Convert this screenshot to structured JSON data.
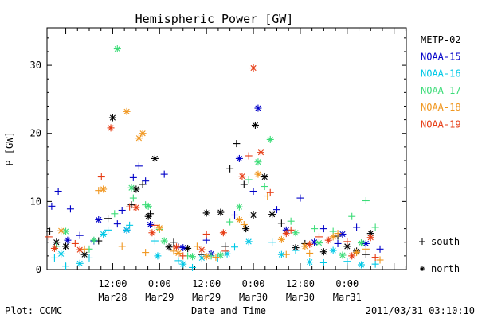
{
  "chart_data": {
    "type": "scatter",
    "title": "Hemispheric Power [GW]",
    "ylabel": "P [GW]",
    "xlabel": "Date and Time",
    "ylim": [
      0,
      35.5
    ],
    "xlim": [
      -0.2,
      3.63
    ],
    "yticks": [
      0,
      10,
      20,
      30
    ],
    "xticks": [
      {
        "x": 0.5,
        "top": "12:00",
        "bottom": "Mar28"
      },
      {
        "x": 1.0,
        "top": "0:00",
        "bottom": "Mar29"
      },
      {
        "x": 1.5,
        "top": "12:00",
        "bottom": "Mar29"
      },
      {
        "x": 2.0,
        "top": "0:00",
        "bottom": "Mar30"
      },
      {
        "x": 2.5,
        "top": "12:00",
        "bottom": "Mar30"
      },
      {
        "x": 3.0,
        "top": "0:00",
        "bottom": "Mar31"
      }
    ],
    "marker_legend": [
      {
        "symbol": "+",
        "label": "south"
      },
      {
        "symbol": "*",
        "label": "north"
      }
    ],
    "series": [
      {
        "name": "METP-02",
        "color": "#000000",
        "south": [
          [
            -0.17,
            5.6
          ],
          [
            0.35,
            4.2
          ],
          [
            0.45,
            7.5
          ],
          [
            0.7,
            9.5
          ],
          [
            0.82,
            12.5
          ],
          [
            0.9,
            8.2
          ],
          [
            1.15,
            4.0
          ],
          [
            1.45,
            2.2
          ],
          [
            1.7,
            3.4
          ],
          [
            1.75,
            14.8
          ],
          [
            1.82,
            18.5
          ],
          [
            1.9,
            12.5
          ],
          [
            2.3,
            6.8
          ],
          [
            2.55,
            3.8
          ],
          [
            2.9,
            4.9
          ],
          [
            3.2,
            2.2
          ]
        ],
        "north": [
          [
            -0.1,
            4.0
          ],
          [
            0.0,
            3.4
          ],
          [
            0.2,
            2.2
          ],
          [
            0.5,
            22.3
          ],
          [
            0.75,
            11.8
          ],
          [
            0.88,
            7.8
          ],
          [
            0.95,
            16.3
          ],
          [
            1.1,
            3.3
          ],
          [
            1.3,
            3.1
          ],
          [
            1.5,
            8.3
          ],
          [
            1.65,
            8.4
          ],
          [
            1.92,
            6.0
          ],
          [
            2.0,
            8.0
          ],
          [
            2.02,
            21.2
          ],
          [
            2.12,
            13.6
          ],
          [
            2.2,
            8.1
          ],
          [
            2.45,
            3.2
          ],
          [
            2.75,
            2.6
          ],
          [
            3.0,
            3.4
          ],
          [
            3.25,
            5.3
          ],
          [
            3.1,
            2.7
          ]
        ]
      },
      {
        "name": "NOAA-15",
        "color": "#0000c8",
        "south": [
          [
            -0.15,
            9.3
          ],
          [
            -0.08,
            11.5
          ],
          [
            0.05,
            8.9
          ],
          [
            0.15,
            5.0
          ],
          [
            0.3,
            4.2
          ],
          [
            0.55,
            6.7
          ],
          [
            0.6,
            8.7
          ],
          [
            0.72,
            13.5
          ],
          [
            0.78,
            15.2
          ],
          [
            0.85,
            13.0
          ],
          [
            1.05,
            14.0
          ],
          [
            1.2,
            3.3
          ],
          [
            1.5,
            4.3
          ],
          [
            1.8,
            8.0
          ],
          [
            2.0,
            11.5
          ],
          [
            2.25,
            8.8
          ],
          [
            2.5,
            10.5
          ],
          [
            2.75,
            6.0
          ],
          [
            2.9,
            3.8
          ],
          [
            3.1,
            6.2
          ],
          [
            3.35,
            3.0
          ]
        ],
        "north": [
          [
            0.02,
            4.3
          ],
          [
            0.35,
            7.3
          ],
          [
            0.65,
            5.8
          ],
          [
            0.9,
            6.6
          ],
          [
            1.25,
            3.2
          ],
          [
            1.55,
            2.3
          ],
          [
            1.85,
            16.3
          ],
          [
            2.05,
            23.7
          ],
          [
            2.35,
            5.8
          ],
          [
            2.65,
            4.0
          ],
          [
            2.95,
            5.2
          ],
          [
            3.2,
            3.8
          ]
        ]
      },
      {
        "name": "NOAA-16",
        "color": "#00c8e6",
        "south": [
          [
            -0.12,
            1.7
          ],
          [
            0.0,
            0.5
          ],
          [
            0.25,
            1.7
          ],
          [
            0.45,
            5.8
          ],
          [
            0.68,
            6.5
          ],
          [
            0.95,
            4.2
          ],
          [
            1.2,
            1.3
          ],
          [
            1.35,
            0.3
          ],
          [
            1.62,
            1.7
          ],
          [
            1.8,
            3.3
          ],
          [
            2.2,
            4.0
          ],
          [
            2.45,
            2.8
          ],
          [
            2.75,
            1.0
          ],
          [
            3.0,
            1.2
          ],
          [
            3.3,
            0.8
          ]
        ],
        "north": [
          [
            -0.05,
            2.3
          ],
          [
            0.15,
            0.9
          ],
          [
            0.4,
            5.2
          ],
          [
            0.65,
            5.8
          ],
          [
            0.98,
            2.0
          ],
          [
            1.25,
            0.8
          ],
          [
            1.45,
            1.7
          ],
          [
            1.72,
            2.3
          ],
          [
            1.95,
            4.1
          ],
          [
            2.3,
            2.2
          ],
          [
            2.6,
            1.1
          ],
          [
            2.85,
            2.8
          ],
          [
            3.15,
            0.7
          ]
        ]
      },
      {
        "name": "NOAA-17",
        "color": "#3cdc78",
        "south": [
          [
            -0.1,
            3.4
          ],
          [
            0.25,
            3.0
          ],
          [
            0.52,
            8.2
          ],
          [
            0.72,
            10.5
          ],
          [
            0.85,
            9.5
          ],
          [
            1.0,
            5.9
          ],
          [
            1.3,
            2.0
          ],
          [
            1.55,
            2.0
          ],
          [
            1.75,
            7.0
          ],
          [
            1.95,
            13.2
          ],
          [
            2.12,
            12.2
          ],
          [
            2.4,
            7.1
          ],
          [
            2.65,
            6.0
          ],
          [
            2.85,
            5.6
          ],
          [
            3.05,
            7.8
          ],
          [
            3.2,
            10.1
          ],
          [
            3.3,
            6.2
          ]
        ],
        "north": [
          [
            0.0,
            5.6
          ],
          [
            0.3,
            4.3
          ],
          [
            0.55,
            32.4
          ],
          [
            0.7,
            12.0
          ],
          [
            0.88,
            9.3
          ],
          [
            1.05,
            4.2
          ],
          [
            1.35,
            1.9
          ],
          [
            1.65,
            2.1
          ],
          [
            1.85,
            9.2
          ],
          [
            2.05,
            15.8
          ],
          [
            2.18,
            19.1
          ],
          [
            2.45,
            5.4
          ],
          [
            2.7,
            3.9
          ],
          [
            2.95,
            2.1
          ],
          [
            3.15,
            3.9
          ]
        ]
      },
      {
        "name": "NOAA-18",
        "color": "#f0961e",
        "south": [
          [
            0.2,
            3.0
          ],
          [
            0.35,
            11.6
          ],
          [
            0.6,
            3.4
          ],
          [
            0.85,
            2.5
          ],
          [
            1.15,
            2.7
          ],
          [
            1.4,
            3.4
          ],
          [
            1.6,
            1.8
          ],
          [
            1.9,
            6.6
          ],
          [
            2.15,
            10.8
          ],
          [
            2.35,
            2.2
          ],
          [
            2.6,
            2.4
          ],
          [
            2.9,
            5.3
          ],
          [
            3.2,
            3.0
          ],
          [
            3.35,
            1.4
          ]
        ],
        "north": [
          [
            -0.05,
            5.7
          ],
          [
            0.4,
            11.8
          ],
          [
            0.65,
            23.2
          ],
          [
            0.78,
            19.3
          ],
          [
            0.82,
            20.0
          ],
          [
            1.0,
            6.1
          ],
          [
            1.2,
            2.4
          ],
          [
            1.5,
            1.9
          ],
          [
            1.85,
            7.3
          ],
          [
            2.05,
            14.0
          ],
          [
            2.3,
            4.4
          ],
          [
            2.55,
            3.4
          ],
          [
            2.85,
            4.8
          ],
          [
            3.1,
            2.5
          ]
        ]
      },
      {
        "name": "NOAA-19",
        "color": "#e63c14",
        "south": [
          [
            -0.18,
            4.8
          ],
          [
            0.1,
            3.8
          ],
          [
            0.38,
            13.6
          ],
          [
            0.68,
            9.2
          ],
          [
            0.95,
            6.5
          ],
          [
            1.25,
            2.0
          ],
          [
            1.5,
            5.2
          ],
          [
            1.7,
            2.7
          ],
          [
            1.95,
            16.7
          ],
          [
            2.18,
            11.3
          ],
          [
            2.4,
            5.8
          ],
          [
            2.7,
            4.8
          ],
          [
            3.0,
            4.1
          ],
          [
            3.3,
            1.8
          ]
        ],
        "north": [
          [
            -0.12,
            3.1
          ],
          [
            0.15,
            2.9
          ],
          [
            0.48,
            20.8
          ],
          [
            0.75,
            9.1
          ],
          [
            0.92,
            5.4
          ],
          [
            1.18,
            3.3
          ],
          [
            1.45,
            2.9
          ],
          [
            1.68,
            5.4
          ],
          [
            1.88,
            13.7
          ],
          [
            2.0,
            29.6
          ],
          [
            2.08,
            17.2
          ],
          [
            2.35,
            5.3
          ],
          [
            2.6,
            3.7
          ],
          [
            2.8,
            4.3
          ],
          [
            3.05,
            2.0
          ],
          [
            3.25,
            4.7
          ]
        ]
      }
    ]
  },
  "footer": {
    "left": "Plot: CCMC",
    "center": "Date and Time",
    "right": "2011/03/31  03:10:10"
  }
}
